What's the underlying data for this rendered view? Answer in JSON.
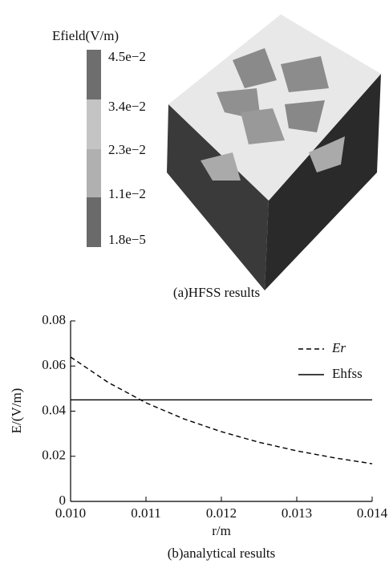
{
  "colorbar": {
    "title": "Efield(V/m)",
    "ticks": [
      "4.5e−2",
      "3.4e−2",
      "2.3e−2",
      "1.1e−2",
      "1.8e−5"
    ]
  },
  "caption_a": "(a)HFSS results",
  "chart_data": {
    "type": "line",
    "caption": "(b)analytical results",
    "xlabel": "r/m",
    "ylabel": "E/(V/m)",
    "x": [
      0.01,
      0.0105,
      0.011,
      0.0115,
      0.012,
      0.0125,
      0.013,
      0.0135,
      0.014
    ],
    "series": [
      {
        "name": "Er",
        "color": "#000000",
        "dash": true,
        "values": [
          0.064,
          0.0527,
          0.0437,
          0.0366,
          0.0309,
          0.0262,
          0.0224,
          0.0193,
          0.0167
        ]
      },
      {
        "name": "Ehfss",
        "color": "#000000",
        "dash": false,
        "values": [
          0.045,
          0.045,
          0.045,
          0.045,
          0.045,
          0.045,
          0.045,
          0.045,
          0.045
        ]
      }
    ],
    "xlim": [
      0.01,
      0.014
    ],
    "xticks": [
      {
        "value": 0.01,
        "label": "0.010"
      },
      {
        "value": 0.011,
        "label": "0.011"
      },
      {
        "value": 0.012,
        "label": "0.012"
      },
      {
        "value": 0.013,
        "label": "0.013"
      },
      {
        "value": 0.014,
        "label": "0.014"
      }
    ],
    "ylim": [
      0,
      0.08
    ],
    "yticks": [
      0,
      0.02,
      0.04,
      0.06,
      0.08
    ],
    "legend": "upper right"
  }
}
